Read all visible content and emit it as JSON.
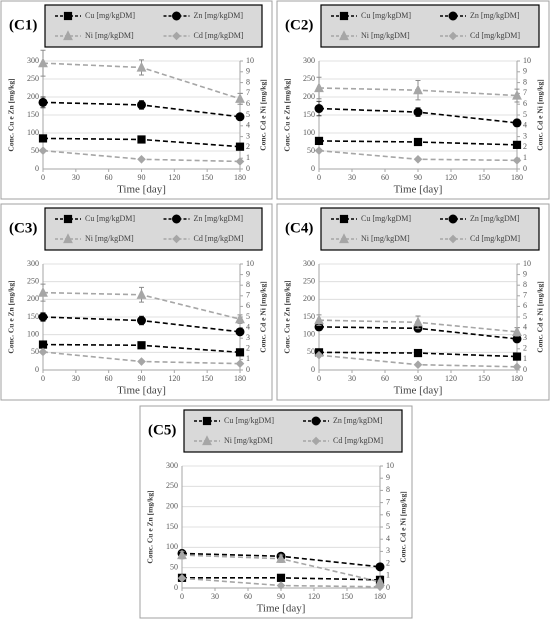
{
  "chart_data": [
    {
      "type": "line",
      "title": "(C1)",
      "x": [
        0,
        90,
        180
      ],
      "xlim": [
        0,
        180
      ],
      "xticks": [
        0,
        30,
        60,
        90,
        120,
        150,
        180
      ],
      "ylim": [
        0,
        300
      ],
      "yticks": [
        0,
        50,
        100,
        150,
        200,
        250,
        300
      ],
      "y2lim": [
        0,
        10
      ],
      "y2ticks": [
        0,
        1,
        2,
        3,
        4,
        5,
        6,
        7,
        8,
        9,
        10
      ],
      "xlabel": "Time [day]",
      "ylabel": "Conc. Cu e Zn [mg/kg]",
      "y2label": "Conc. Cd e Ni [mg/kg]",
      "grid": true,
      "legend": "top",
      "series": [
        {
          "name": "Cu [mg/kgDM]",
          "color": "#000000",
          "marker": "square",
          "values": [
            85,
            82,
            62
          ]
        },
        {
          "name": "Zn [mg/kgDM]",
          "color": "#000000",
          "marker": "circle",
          "values": [
            185,
            178,
            145
          ],
          "errors": [
            15,
            12,
            8
          ]
        },
        {
          "name": "Ni [mg/kgDM]",
          "color": "#a6a6a6",
          "marker": "triangle",
          "axis": "y2",
          "values": [
            9.8,
            9.4,
            6.5
          ],
          "errors": [
            1.2,
            0.7,
            0.5
          ]
        },
        {
          "name": "Cd [mg/kgDM]",
          "color": "#a6a6a6",
          "marker": "diamond",
          "axis": "y2",
          "values": [
            1.7,
            0.9,
            0.7
          ]
        }
      ]
    },
    {
      "type": "line",
      "title": "(C2)",
      "x": [
        0,
        90,
        180
      ],
      "xlim": [
        0,
        180
      ],
      "xticks": [
        0,
        30,
        60,
        90,
        120,
        150,
        180
      ],
      "ylim": [
        0,
        300
      ],
      "yticks": [
        0,
        50,
        100,
        150,
        200,
        250,
        300
      ],
      "y2lim": [
        0,
        10
      ],
      "y2ticks": [
        0,
        1,
        2,
        3,
        4,
        5,
        6,
        7,
        8,
        9,
        10
      ],
      "xlabel": "Time [day]",
      "ylabel": "Conc. Cu e Zn [mg/kg]",
      "y2label": "Conc. Cd e Ni [mg/kg]",
      "grid": true,
      "legend": "top",
      "series": [
        {
          "name": "Cu [mg/kgDM]",
          "color": "#000000",
          "marker": "square",
          "values": [
            78,
            75,
            67
          ]
        },
        {
          "name": "Zn [mg/kgDM]",
          "color": "#000000",
          "marker": "circle",
          "values": [
            168,
            158,
            128
          ],
          "errors": [
            20,
            12,
            10
          ]
        },
        {
          "name": "Ni [mg/kgDM]",
          "color": "#a6a6a6",
          "marker": "triangle",
          "axis": "y2",
          "values": [
            7.5,
            7.3,
            6.8
          ],
          "errors": [
            1.0,
            0.9,
            0.6
          ]
        },
        {
          "name": "Cd [mg/kgDM]",
          "color": "#a6a6a6",
          "marker": "diamond",
          "axis": "y2",
          "values": [
            1.7,
            0.9,
            0.8
          ]
        }
      ]
    },
    {
      "type": "line",
      "title": "(C3)",
      "x": [
        0,
        90,
        180
      ],
      "xlim": [
        0,
        180
      ],
      "xticks": [
        0,
        30,
        60,
        90,
        120,
        150,
        180
      ],
      "ylim": [
        0,
        300
      ],
      "yticks": [
        0,
        50,
        100,
        150,
        200,
        250,
        300
      ],
      "y2lim": [
        0,
        10
      ],
      "y2ticks": [
        0,
        1,
        2,
        3,
        4,
        5,
        6,
        7,
        8,
        9,
        10
      ],
      "xlabel": "Time [day]",
      "ylabel": "Conc. Cu e Zn [mg/kg]",
      "y2label": "Conc. Cd e Ni [mg/kg]",
      "grid": true,
      "legend": "top",
      "series": [
        {
          "name": "Cu [mg/kgDM]",
          "color": "#000000",
          "marker": "square",
          "values": [
            72,
            70,
            50
          ]
        },
        {
          "name": "Zn [mg/kgDM]",
          "color": "#000000",
          "marker": "circle",
          "values": [
            150,
            140,
            108
          ],
          "errors": [
            12,
            12,
            8
          ]
        },
        {
          "name": "Ni [mg/kgDM]",
          "color": "#a6a6a6",
          "marker": "triangle",
          "axis": "y2",
          "values": [
            7.3,
            7.1,
            4.8
          ],
          "errors": [
            0.8,
            0.7,
            0.4
          ]
        },
        {
          "name": "Cd [mg/kgDM]",
          "color": "#a6a6a6",
          "marker": "diamond",
          "axis": "y2",
          "values": [
            1.7,
            0.8,
            0.6
          ]
        }
      ]
    },
    {
      "type": "line",
      "title": "(C4)",
      "x": [
        0,
        90,
        180
      ],
      "xlim": [
        0,
        180
      ],
      "xticks": [
        0,
        30,
        60,
        90,
        120,
        150,
        180
      ],
      "ylim": [
        0,
        300
      ],
      "yticks": [
        0,
        50,
        100,
        150,
        200,
        250,
        300
      ],
      "y2lim": [
        0,
        10
      ],
      "y2ticks": [
        0,
        1,
        2,
        3,
        4,
        5,
        6,
        7,
        8,
        9,
        10
      ],
      "xlabel": "Time [day]",
      "ylabel": "Conc. Cu e Zn [mg/kg]",
      "y2label": "Conc. Cd e Ni [mg/kg]",
      "grid": true,
      "legend": "top",
      "series": [
        {
          "name": "Cu [mg/kgDM]",
          "color": "#000000",
          "marker": "square",
          "values": [
            50,
            48,
            38
          ]
        },
        {
          "name": "Zn [mg/kgDM]",
          "color": "#000000",
          "marker": "circle",
          "values": [
            122,
            118,
            88
          ],
          "errors": [
            10,
            10,
            8
          ]
        },
        {
          "name": "Ni [mg/kgDM]",
          "color": "#a6a6a6",
          "marker": "triangle",
          "axis": "y2",
          "values": [
            4.7,
            4.5,
            3.6
          ],
          "errors": [
            0.5,
            0.6,
            0.4
          ]
        },
        {
          "name": "Cd [mg/kgDM]",
          "color": "#a6a6a6",
          "marker": "diamond",
          "axis": "y2",
          "values": [
            1.4,
            0.5,
            0.3
          ]
        }
      ]
    },
    {
      "type": "line",
      "title": "(C5)",
      "x": [
        0,
        90,
        180
      ],
      "xlim": [
        0,
        180
      ],
      "xticks": [
        0,
        30,
        60,
        90,
        120,
        150,
        180
      ],
      "ylim": [
        0,
        300
      ],
      "yticks": [
        0,
        50,
        100,
        150,
        200,
        250,
        300
      ],
      "y2lim": [
        0,
        10
      ],
      "y2ticks": [
        0,
        1,
        2,
        3,
        4,
        5,
        6,
        7,
        8,
        9,
        10
      ],
      "xlabel": "Time [day]",
      "ylabel": "Conc. Cu e Zn [mg/kg]",
      "y2label": "Conc. Cd e Ni [mg/kg]",
      "grid": true,
      "legend": "top",
      "series": [
        {
          "name": "Cu [mg/kgDM]",
          "color": "#000000",
          "marker": "square",
          "values": [
            25,
            25,
            20
          ]
        },
        {
          "name": "Zn [mg/kgDM]",
          "color": "#000000",
          "marker": "circle",
          "values": [
            85,
            78,
            52
          ],
          "errors": [
            5,
            5,
            5
          ]
        },
        {
          "name": "Ni [mg/kgDM]",
          "color": "#a6a6a6",
          "marker": "triangle",
          "axis": "y2",
          "values": [
            2.7,
            2.4,
            0.5
          ],
          "errors": [
            0.3,
            0.3,
            0.1
          ]
        },
        {
          "name": "Cd [mg/kgDM]",
          "color": "#a6a6a6",
          "marker": "diamond",
          "axis": "y2",
          "values": [
            0.8,
            0.2,
            0.1
          ]
        }
      ]
    }
  ]
}
